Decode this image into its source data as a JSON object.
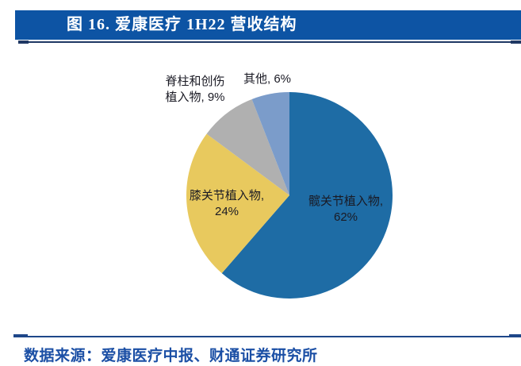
{
  "figure": {
    "title": "图 16. 爱康医疗 1H22 营收结构",
    "source": "数据来源：爱康医疗中报、财通证券研究所"
  },
  "colors": {
    "title_bar_bg": "#0D54A4",
    "title_text": "#FFFFFF",
    "header_rule": "#1F3864",
    "footer_rule": "#1E4789",
    "source_text": "#1B4FA5",
    "slice_label_text": "#1A1A24"
  },
  "chart_data": {
    "type": "pie",
    "title": "爱康医疗 1H22 营收结构",
    "categories": [
      "髋关节植入物",
      "膝关节植入物",
      "脊柱和创伤植入物",
      "其他"
    ],
    "values": [
      62,
      24,
      9,
      6
    ],
    "value_unit": "%",
    "colors": [
      "#1E6CA5",
      "#E8C95E",
      "#B0B0B0",
      "#7B9CCA"
    ],
    "start_angle_deg": 0,
    "direction": "clockwise",
    "legend": false,
    "labels_on_chart": [
      {
        "category": "髋关节植入物",
        "lines": [
          "髋关节植入物,",
          "62%"
        ],
        "placement": "inside"
      },
      {
        "category": "膝关节植入物",
        "lines": [
          "膝关节植入物,",
          "24%"
        ],
        "placement": "inside"
      },
      {
        "category": "脊柱和创伤植入物",
        "lines": [
          "脊柱和创伤",
          "植入物, 9%"
        ],
        "placement": "outside"
      },
      {
        "category": "其他",
        "lines": [
          "其他, 6%"
        ],
        "placement": "outside"
      }
    ]
  }
}
